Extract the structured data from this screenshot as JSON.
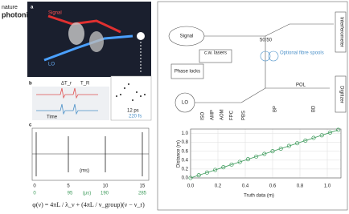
{
  "header": {
    "logo_top": "nature",
    "logo_bottom": "photonics"
  },
  "panel_a": {
    "label": "a",
    "signal": "Signal",
    "lo": "LO"
  },
  "panel_b": {
    "label": "b",
    "delta_tr": "ΔT_r",
    "tr": "T_R",
    "time": "Time",
    "inset_ps": "12 ps",
    "inset_fs": "220 fs"
  },
  "panel_c": {
    "label": "c",
    "ms_ticks": [
      "0",
      "5",
      "10",
      "15"
    ],
    "ms_unit": "(ms)",
    "us_ticks": [
      "0",
      "95",
      "190",
      "285"
    ],
    "us_unit": "(µs)",
    "equation": "φ(ν) = 4πL / λ_ν + (4πL / v_group)(ν − ν_r)"
  },
  "diagram": {
    "signal": "Signal",
    "cw_lasers": "c.w. lasers",
    "phase_locks": "Phase locks",
    "lo": "LO",
    "splitter": "50:50",
    "spools": "Optional fibre spools",
    "interferometer": "Interferometer",
    "digitizer": "Digitizer",
    "iso": "ISO",
    "amp": "AMP",
    "aom": "AOM",
    "fpc": "FPC",
    "pbs": "PBS",
    "bp": "BP",
    "pol": "POL",
    "bd": "BD"
  },
  "chart_data": {
    "type": "scatter",
    "x_label": "Truth data (m)",
    "y_label": "Distance (m)",
    "color": "#3c9a5a",
    "x": [
      0,
      0.06,
      0.12,
      0.18,
      0.24,
      0.3,
      0.36,
      0.42,
      0.48,
      0.54,
      0.6,
      0.66,
      0.72,
      0.78,
      0.84,
      0.9,
      0.96,
      1.02,
      1.08
    ],
    "values": [
      0,
      0.06,
      0.12,
      0.18,
      0.24,
      0.3,
      0.36,
      0.42,
      0.48,
      0.54,
      0.6,
      0.66,
      0.72,
      0.78,
      0.84,
      0.9,
      0.96,
      1.02,
      1.08
    ],
    "xlim": [
      0,
      1.1
    ],
    "ylim": [
      0,
      1.1
    ],
    "xticks": [
      {
        "value": 0,
        "label": "0.0"
      },
      0.2,
      0.4,
      0.6,
      0.8,
      {
        "value": 1,
        "label": "1.0"
      }
    ],
    "yticks": [
      {
        "value": 0,
        "label": "0.0"
      },
      0.2,
      0.4,
      0.6,
      0.8,
      {
        "value": 1,
        "label": "1.0"
      }
    ],
    "grid": true
  }
}
